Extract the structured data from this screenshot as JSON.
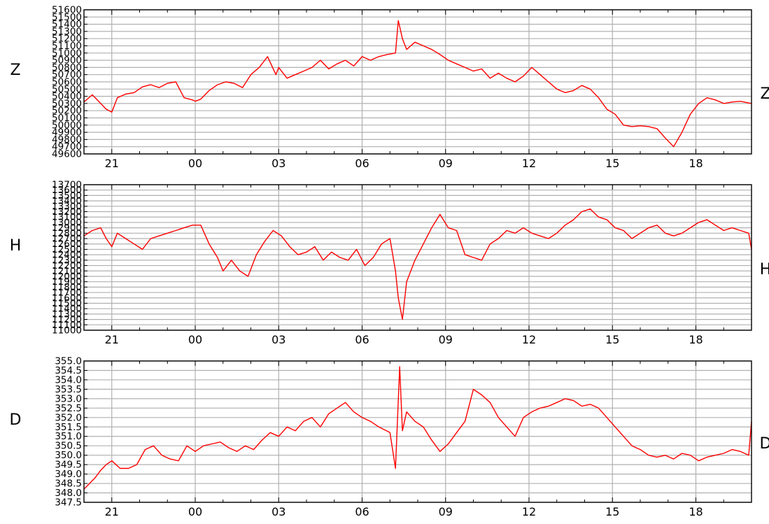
{
  "colors": {
    "trace": "#ff0000",
    "grid": "#b0b0b0",
    "axis": "#000000"
  },
  "x_tick_labels": [
    "21",
    "00",
    "03",
    "06",
    "09",
    "12",
    "15",
    "18"
  ],
  "chart_data": [
    {
      "type": "line",
      "label_left": "Z",
      "label_right": "Z",
      "grid": true,
      "xlim": [
        20,
        44
      ],
      "ylim": [
        49600,
        51600
      ],
      "y_tick_labels": [
        "49600",
        "49700",
        "49800",
        "49900",
        "50000",
        "50100",
        "50200",
        "50300",
        "50400",
        "50500",
        "50600",
        "50700",
        "50800",
        "50900",
        "51000",
        "51100",
        "51200",
        "51300",
        "51400",
        "51500",
        "51600"
      ],
      "series": [
        {
          "x": [
            20.0,
            20.3,
            20.6,
            20.8,
            21.0,
            21.2,
            21.5,
            21.8,
            22.1,
            22.4,
            22.7,
            23.0,
            23.3,
            23.6,
            23.9,
            24.0,
            24.2,
            24.5,
            24.8,
            25.1,
            25.4,
            25.7,
            26.0,
            26.3,
            26.6,
            26.9,
            27.0,
            27.3,
            27.6,
            27.9,
            28.2,
            28.5,
            28.8,
            29.1,
            29.4,
            29.7,
            30.0,
            30.3,
            30.6,
            30.9,
            31.2,
            31.3,
            31.45,
            31.6,
            31.9,
            32.2,
            32.5,
            32.8,
            33.1,
            33.4,
            33.7,
            34.0,
            34.3,
            34.6,
            34.9,
            35.2,
            35.5,
            35.8,
            36.1,
            36.4,
            36.7,
            37.0,
            37.3,
            37.6,
            37.9,
            38.2,
            38.5,
            38.8,
            39.1,
            39.4,
            39.7,
            40.0,
            40.3,
            40.6,
            40.9,
            41.2,
            41.5,
            41.8,
            42.1,
            42.4,
            42.7,
            43.0,
            43.3,
            43.6,
            44.0
          ],
          "y": [
            50320,
            50420,
            50300,
            50220,
            50180,
            50380,
            50430,
            50450,
            50530,
            50560,
            50520,
            50580,
            50600,
            50380,
            50350,
            50330,
            50360,
            50480,
            50560,
            50600,
            50580,
            50520,
            50700,
            50800,
            50950,
            50700,
            50800,
            50650,
            50700,
            50750,
            50800,
            50900,
            50780,
            50850,
            50900,
            50820,
            50950,
            50900,
            50950,
            50980,
            51000,
            51450,
            51200,
            51050,
            51150,
            51100,
            51050,
            50980,
            50900,
            50850,
            50800,
            50750,
            50780,
            50650,
            50720,
            50650,
            50600,
            50680,
            50800,
            50700,
            50600,
            50500,
            50450,
            50480,
            50550,
            50500,
            50380,
            50220,
            50150,
            50000,
            49980,
            49990,
            49980,
            49950,
            49820,
            49700,
            49900,
            50150,
            50300,
            50380,
            50350,
            50300,
            50320,
            50330,
            50300
          ]
        }
      ]
    },
    {
      "type": "line",
      "label_left": "H",
      "label_right": "H",
      "grid": true,
      "xlim": [
        20,
        44
      ],
      "ylim": [
        11000,
        13700
      ],
      "y_tick_labels": [
        "11000",
        "11100",
        "11200",
        "11300",
        "11400",
        "11500",
        "11600",
        "11700",
        "11800",
        "11900",
        "12000",
        "12100",
        "12200",
        "12300",
        "12400",
        "12500",
        "12600",
        "12700",
        "12800",
        "12900",
        "13000",
        "13100",
        "13200",
        "13300",
        "13400",
        "13500",
        "13600",
        "13700"
      ],
      "series": [
        {
          "x": [
            20.0,
            20.3,
            20.6,
            20.8,
            21.0,
            21.2,
            21.5,
            21.8,
            22.1,
            22.4,
            22.7,
            23.0,
            23.3,
            23.6,
            23.9,
            24.2,
            24.5,
            24.8,
            25.0,
            25.3,
            25.6,
            25.9,
            26.2,
            26.5,
            26.8,
            27.1,
            27.4,
            27.7,
            28.0,
            28.3,
            28.6,
            28.9,
            29.2,
            29.5,
            29.8,
            30.1,
            30.4,
            30.7,
            31.0,
            31.2,
            31.3,
            31.45,
            31.6,
            31.9,
            32.2,
            32.5,
            32.8,
            33.1,
            33.4,
            33.7,
            34.0,
            34.3,
            34.6,
            34.9,
            35.2,
            35.5,
            35.8,
            36.1,
            36.4,
            36.7,
            37.0,
            37.3,
            37.6,
            37.9,
            38.2,
            38.5,
            38.8,
            39.1,
            39.4,
            39.7,
            40.0,
            40.3,
            40.6,
            40.9,
            41.2,
            41.5,
            41.8,
            42.1,
            42.4,
            42.7,
            43.0,
            43.3,
            43.6,
            43.9,
            44.0
          ],
          "y": [
            12750,
            12850,
            12900,
            12700,
            12550,
            12800,
            12700,
            12600,
            12500,
            12700,
            12750,
            12800,
            12850,
            12900,
            12950,
            12950,
            12600,
            12350,
            12100,
            12300,
            12100,
            12000,
            12400,
            12650,
            12850,
            12750,
            12550,
            12400,
            12450,
            12550,
            12300,
            12450,
            12350,
            12300,
            12500,
            12200,
            12350,
            12600,
            12700,
            12100,
            11600,
            11200,
            11900,
            12300,
            12600,
            12900,
            13150,
            12900,
            12850,
            12400,
            12350,
            12300,
            12600,
            12700,
            12850,
            12800,
            12900,
            12800,
            12750,
            12700,
            12800,
            12950,
            13050,
            13200,
            13250,
            13100,
            13050,
            12900,
            12850,
            12700,
            12800,
            12900,
            12950,
            12800,
            12750,
            12800,
            12900,
            13000,
            13050,
            12950,
            12850,
            12900,
            12850,
            12800,
            12500
          ]
        }
      ]
    },
    {
      "type": "line",
      "label_left": "D",
      "label_right": "D",
      "grid": true,
      "xlim": [
        20,
        44
      ],
      "ylim": [
        347.5,
        355.0
      ],
      "y_tick_labels": [
        "347.5",
        "348.0",
        "348.5",
        "349.0",
        "349.5",
        "350.0",
        "350.5",
        "351.0",
        "351.5",
        "352.0",
        "352.5",
        "353.0",
        "353.5",
        "354.0",
        "354.5",
        "355.0"
      ],
      "series": [
        {
          "x": [
            20.0,
            20.2,
            20.4,
            20.6,
            20.8,
            21.0,
            21.3,
            21.6,
            21.9,
            22.2,
            22.5,
            22.8,
            23.1,
            23.4,
            23.7,
            24.0,
            24.3,
            24.6,
            24.9,
            25.2,
            25.5,
            25.8,
            26.1,
            26.4,
            26.7,
            27.0,
            27.3,
            27.6,
            27.9,
            28.2,
            28.5,
            28.8,
            29.1,
            29.4,
            29.7,
            30.0,
            30.3,
            30.6,
            31.0,
            31.2,
            31.35,
            31.45,
            31.6,
            31.9,
            32.2,
            32.5,
            32.8,
            33.1,
            33.4,
            33.7,
            34.0,
            34.3,
            34.6,
            34.9,
            35.2,
            35.5,
            35.8,
            36.1,
            36.4,
            36.7,
            37.0,
            37.3,
            37.6,
            37.9,
            38.2,
            38.5,
            38.8,
            39.1,
            39.4,
            39.7,
            40.0,
            40.3,
            40.6,
            40.9,
            41.2,
            41.5,
            41.8,
            42.1,
            42.4,
            42.7,
            43.0,
            43.3,
            43.6,
            43.9,
            44.0
          ],
          "y": [
            348.2,
            348.5,
            348.8,
            349.2,
            349.5,
            349.7,
            349.3,
            349.3,
            349.5,
            350.3,
            350.5,
            350.0,
            349.8,
            349.7,
            350.5,
            350.2,
            350.5,
            350.6,
            350.7,
            350.4,
            350.2,
            350.5,
            350.3,
            350.8,
            351.2,
            351.0,
            351.5,
            351.3,
            351.8,
            352.0,
            351.5,
            352.2,
            352.5,
            352.8,
            352.3,
            352.0,
            351.8,
            351.5,
            351.2,
            349.3,
            354.7,
            351.3,
            352.3,
            351.8,
            351.5,
            350.8,
            350.2,
            350.6,
            351.2,
            351.8,
            353.5,
            353.2,
            352.8,
            352.0,
            351.5,
            351.0,
            352.0,
            352.3,
            352.5,
            352.6,
            352.8,
            353.0,
            352.9,
            352.6,
            352.7,
            352.5,
            352.0,
            351.5,
            351.0,
            350.5,
            350.3,
            350.0,
            349.9,
            350.0,
            349.8,
            350.1,
            350.0,
            349.7,
            349.9,
            350.0,
            350.1,
            350.3,
            350.2,
            350.0,
            351.8
          ]
        }
      ]
    }
  ]
}
